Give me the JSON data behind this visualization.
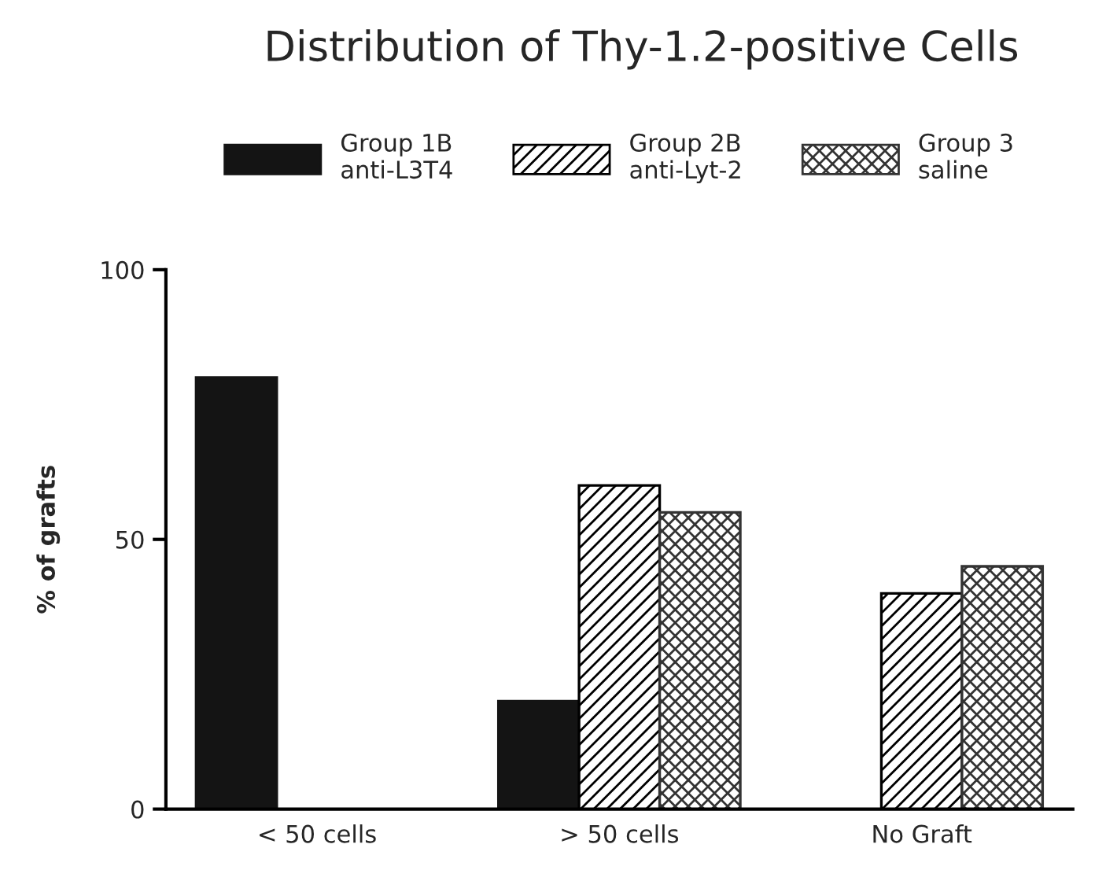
{
  "chart_data": {
    "type": "bar",
    "title": "Distribution of Thy-1.2-positive Cells",
    "ylabel": "% of grafts",
    "categories": [
      "< 50 cells",
      "> 50 cells",
      "No Graft"
    ],
    "series": [
      {
        "name": "Group 1B\nanti-L3T4",
        "color": "#141414",
        "values": [
          80,
          20,
          0
        ]
      },
      {
        "name": "Group 2B\nanti-Lyt-2",
        "color": "#000000",
        "values": [
          0,
          60,
          40
        ]
      },
      {
        "name": "Group 3\nsaline",
        "color": "#333333",
        "values": [
          0,
          55,
          45
        ]
      }
    ],
    "ylim": [
      0,
      100
    ],
    "yticks": [
      0,
      50,
      100
    ],
    "grid": false,
    "legend": "top"
  }
}
